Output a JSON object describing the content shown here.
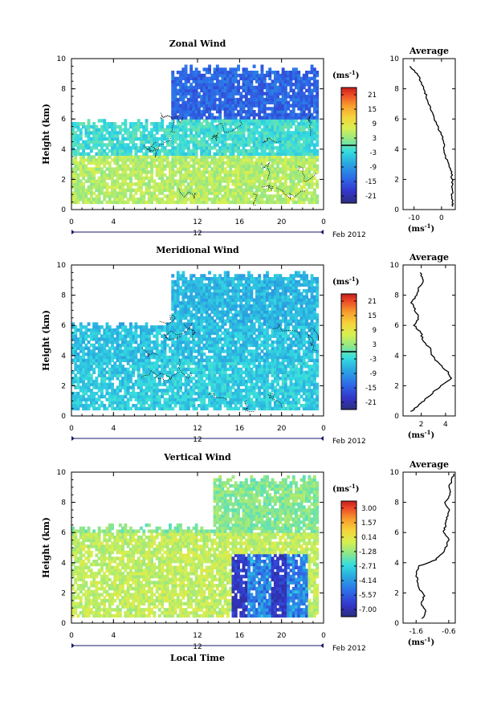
{
  "date_label": "Feb 2012",
  "day_label": "12",
  "bottom_xlabel": "Local Time",
  "chart_data": [
    {
      "type": "heatmap",
      "title": "Zonal Wind",
      "ylabel": "Height (km)",
      "xlabel": "",
      "x_ticks": [
        "0",
        "4",
        "12",
        "16",
        "20",
        "0"
      ],
      "x_tick_values": [
        0,
        4,
        12,
        16,
        20,
        24
      ],
      "y_ticks": [
        "0",
        "2",
        "4",
        "6",
        "8",
        "10"
      ],
      "xlim": [
        0,
        24
      ],
      "ylim": [
        0,
        10
      ],
      "colorbar": {
        "unit_label": "(ms",
        "unit_exp": "-1",
        "ticks": [
          "21",
          "15",
          "9",
          "3",
          "-3",
          "-9",
          "-15",
          "-21"
        ],
        "range": [
          -24,
          24
        ],
        "zero_line": 0
      },
      "field": {
        "low_value": 5,
        "mid_value": -2,
        "top_value": -14,
        "coverage_top_day": 6.0,
        "coverage_top_night": 9.5,
        "night_start": 9.5
      }
    },
    {
      "type": "line",
      "title": "Average",
      "xlabel_unit": "(ms",
      "xlabel_exp": "-1",
      "x_ticks": [
        "-10",
        "0"
      ],
      "x_tick_values": [
        -10,
        0
      ],
      "y_ticks": [
        "0",
        "2",
        "4",
        "6",
        "8",
        "10"
      ],
      "xlim": [
        -14,
        5
      ],
      "ylim": [
        0,
        10
      ],
      "profile": {
        "height": [
          0.2,
          0.5,
          1,
          1.5,
          2,
          2.5,
          3,
          3.5,
          4,
          4.5,
          5,
          5.5,
          6,
          6.5,
          7,
          7.5,
          8,
          8.5,
          9,
          9.5
        ],
        "value": [
          4.2,
          4.0,
          3.8,
          4.0,
          3.9,
          3.6,
          2.5,
          1.5,
          1.0,
          0.8,
          0.0,
          -1.5,
          -2.5,
          -3.5,
          -4.5,
          -5.5,
          -6.5,
          -7.5,
          -9.0,
          -11.5
        ]
      }
    },
    {
      "type": "heatmap",
      "title": "Meridional Wind",
      "ylabel": "Height (km)",
      "xlabel": "",
      "x_ticks": [
        "0",
        "4",
        "12",
        "16",
        "20",
        "0"
      ],
      "x_tick_values": [
        0,
        4,
        12,
        16,
        20,
        24
      ],
      "y_ticks": [
        "0",
        "2",
        "4",
        "6",
        "8",
        "10"
      ],
      "xlim": [
        0,
        24
      ],
      "ylim": [
        0,
        10
      ],
      "colorbar": {
        "unit_label": "(ms",
        "unit_exp": "-1",
        "ticks": [
          "21",
          "15",
          "9",
          "3",
          "-3",
          "-9",
          "-15",
          "-21"
        ],
        "range": [
          -24,
          24
        ],
        "zero_line": 0
      },
      "field": {
        "low_value": -4,
        "mid_value": -5,
        "top_value": -6,
        "coverage_top_day": 6.2,
        "coverage_top_night": 9.5,
        "night_start": 9.5
      }
    },
    {
      "type": "line",
      "title": "Average",
      "xlabel_unit": "(ms",
      "xlabel_exp": "-1",
      "x_ticks": [
        "2",
        "4"
      ],
      "x_tick_values": [
        2,
        4
      ],
      "y_ticks": [
        "0",
        "2",
        "4",
        "6",
        "8",
        "10"
      ],
      "xlim": [
        0.5,
        4.8
      ],
      "ylim": [
        0,
        10
      ],
      "profile": {
        "height": [
          0.3,
          0.6,
          1,
          1.5,
          2,
          2.5,
          3,
          3.5,
          4,
          4.5,
          5,
          5.5,
          6,
          6.5,
          7,
          7.5,
          8,
          8.5,
          9,
          9.5
        ],
        "value": [
          1.2,
          1.6,
          2.2,
          2.9,
          3.6,
          4.5,
          4.1,
          3.4,
          2.9,
          2.7,
          2.1,
          2.0,
          1.4,
          1.8,
          1.5,
          1.2,
          1.6,
          1.8,
          2.2,
          1.9
        ]
      }
    },
    {
      "type": "heatmap",
      "title": "Vertical Wind",
      "ylabel": "Height (km)",
      "xlabel": "Local Time",
      "x_ticks": [
        "0",
        "4",
        "12",
        "16",
        "20",
        "0"
      ],
      "x_tick_values": [
        0,
        4,
        12,
        16,
        20,
        24
      ],
      "y_ticks": [
        "0",
        "2",
        "4",
        "6",
        "8",
        "10"
      ],
      "xlim": [
        0,
        24
      ],
      "ylim": [
        0,
        10
      ],
      "colorbar": {
        "unit_label": "(ms",
        "unit_exp": "-1",
        "ticks": [
          "3.00",
          "1.57",
          "0.14",
          "-1.28",
          "-2.71",
          "-4.14",
          "-5.57",
          "-7.00"
        ],
        "range": [
          -7.7,
          3.7
        ],
        "zero_line": null
      },
      "field": {
        "low_value": -0.6,
        "mid_value": -0.6,
        "top_value": -1.5,
        "coverage_top_day": 6.5,
        "coverage_top_night": 9.8,
        "night_start": 13.5
      }
    },
    {
      "type": "line",
      "title": "Average",
      "xlabel_unit": "(ms",
      "xlabel_exp": "-1",
      "x_ticks": [
        "-1.6",
        "-0.6"
      ],
      "x_tick_values": [
        -1.6,
        -0.6
      ],
      "y_ticks": [
        "0",
        "2",
        "4",
        "6",
        "8",
        "10"
      ],
      "xlim": [
        -2.0,
        -0.4
      ],
      "ylim": [
        0,
        10
      ],
      "profile": {
        "height": [
          0.3,
          0.8,
          1.3,
          1.8,
          2.3,
          2.8,
          3.3,
          3.8,
          4.2,
          4.6,
          5.0,
          5.5,
          6.0,
          6.5,
          7.0,
          7.5,
          8.0,
          8.5,
          9.0,
          9.5,
          9.9
        ],
        "value": [
          -1.4,
          -1.3,
          -1.45,
          -1.35,
          -1.5,
          -1.55,
          -1.6,
          -1.5,
          -1.0,
          -0.8,
          -0.7,
          -0.6,
          -0.75,
          -0.7,
          -0.65,
          -0.6,
          -0.7,
          -0.55,
          -0.6,
          -0.5,
          -0.45
        ]
      }
    }
  ]
}
